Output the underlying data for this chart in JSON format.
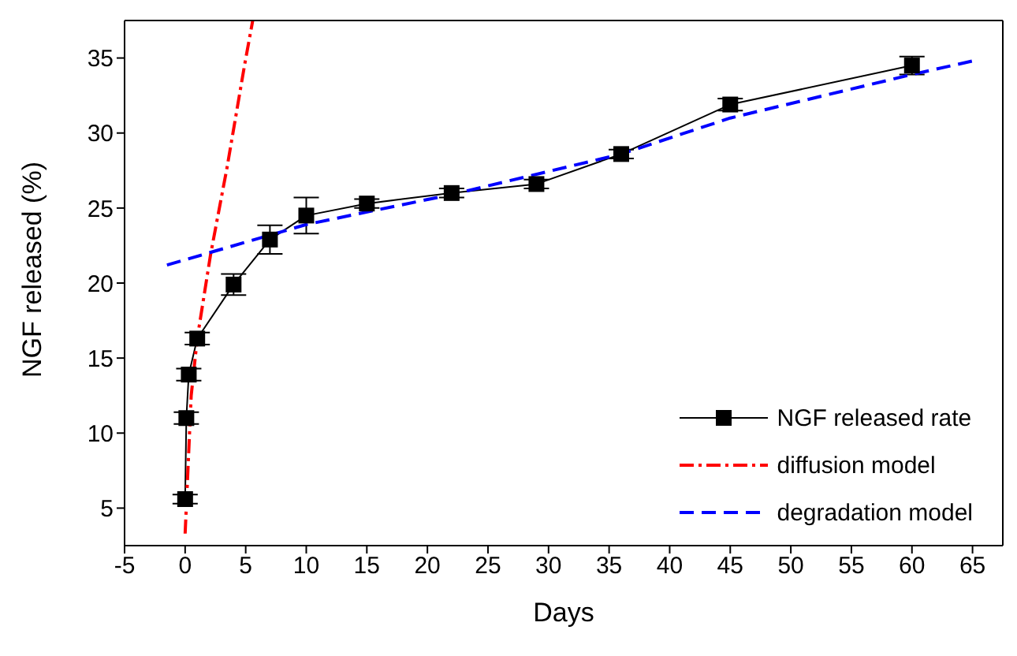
{
  "chart_data": {
    "type": "line",
    "xlabel": "Days",
    "ylabel": "NGF released (%)",
    "xlim": [
      -5,
      67.5
    ],
    "xticks": [
      -5,
      0,
      5,
      10,
      15,
      20,
      25,
      30,
      35,
      40,
      45,
      50,
      55,
      60,
      65
    ],
    "ylim": [
      2.5,
      37.5
    ],
    "yticks": [
      5,
      10,
      15,
      20,
      25,
      30,
      35
    ],
    "grid": false,
    "legend": "bottom right",
    "series": [
      {
        "name": "NGF released rate",
        "type": "line",
        "color": "#000000",
        "marker": "square",
        "line_style": "solid",
        "x": [
          0,
          0.1,
          0.3,
          1,
          4,
          7,
          10,
          15,
          22,
          29,
          36,
          45,
          60
        ],
        "values": [
          5.6,
          11.0,
          13.9,
          16.3,
          19.9,
          22.9,
          24.5,
          25.3,
          26.0,
          26.6,
          28.6,
          31.9,
          34.5
        ],
        "errors": [
          0.3,
          0.4,
          0.4,
          0.4,
          0.7,
          0.95,
          1.2,
          0.3,
          0.3,
          0.3,
          0.3,
          0.4,
          0.6
        ]
      },
      {
        "name": "diffusion model",
        "type": "line",
        "color": "#ff0000",
        "marker": "none",
        "line_style": "dashdot",
        "x": [
          0,
          0.5,
          1,
          2.1,
          3.46,
          4.9,
          5.58
        ],
        "values": [
          3.3,
          12.5,
          16.3,
          21.9,
          27.7,
          34.5,
          37.5
        ]
      },
      {
        "name": "degradation model",
        "type": "line",
        "color": "#0000ff",
        "marker": "none",
        "line_style": "dashed",
        "x": [
          -1.5,
          10,
          22,
          36,
          45,
          60,
          65
        ],
        "values": [
          21.2,
          23.9,
          25.9,
          28.6,
          31.0,
          33.9,
          34.8
        ]
      }
    ]
  }
}
